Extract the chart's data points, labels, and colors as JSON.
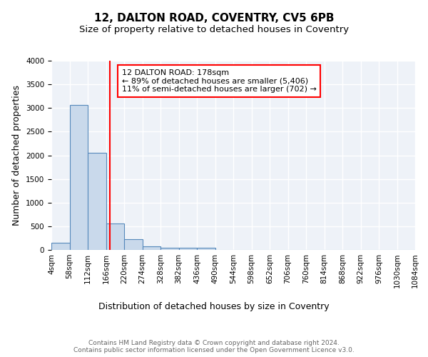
{
  "title": "12, DALTON ROAD, COVENTRY, CV5 6PB",
  "subtitle": "Size of property relative to detached houses in Coventry",
  "xlabel": "Distribution of detached houses by size in Coventry",
  "ylabel": "Number of detached properties",
  "bin_edges": [
    4,
    58,
    112,
    166,
    220,
    274,
    328,
    382,
    436,
    490,
    544,
    598,
    652,
    706,
    760,
    814,
    868,
    922,
    976,
    1030,
    1084
  ],
  "bar_heights": [
    150,
    3060,
    2060,
    560,
    220,
    75,
    50,
    40,
    50,
    0,
    0,
    0,
    0,
    0,
    0,
    0,
    0,
    0,
    0,
    0
  ],
  "bar_color": "#c9d9eb",
  "bar_edge_color": "#5588bb",
  "vline_x": 178,
  "vline_color": "red",
  "ylim": [
    0,
    4000
  ],
  "xlim": [
    4,
    1084
  ],
  "annotation_text": "12 DALTON ROAD: 178sqm\n← 89% of detached houses are smaller (5,406)\n11% of semi-detached houses are larger (702) →",
  "annotation_box_color": "white",
  "annotation_box_edgecolor": "red",
  "background_color": "#eef2f8",
  "grid_color": "white",
  "footer_text": "Contains HM Land Registry data © Crown copyright and database right 2024.\nContains public sector information licensed under the Open Government Licence v3.0.",
  "title_fontsize": 11,
  "subtitle_fontsize": 9.5,
  "ylabel_fontsize": 9,
  "xlabel_fontsize": 9,
  "tick_fontsize": 7.5,
  "annotation_fontsize": 8,
  "footer_fontsize": 6.5
}
